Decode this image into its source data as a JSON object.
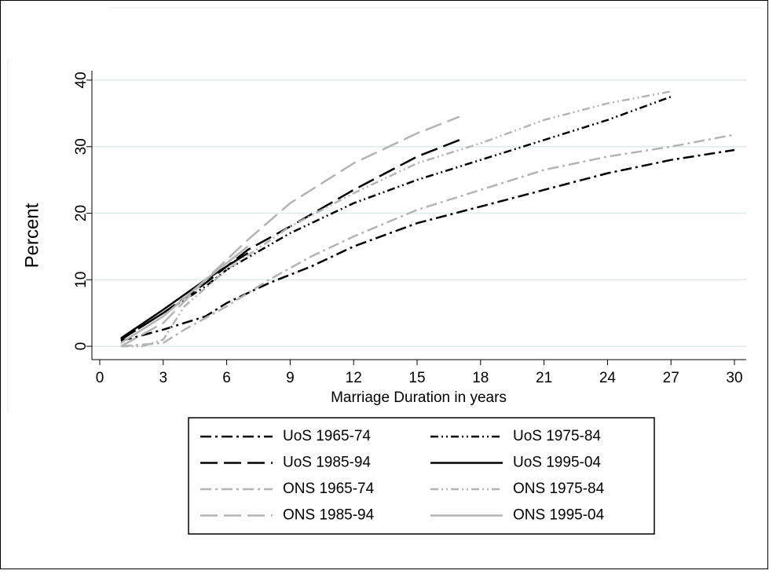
{
  "chart_data": {
    "type": "line",
    "y_label": "Percent",
    "x_label": "Marriage Duration in years",
    "xlim": [
      0,
      30
    ],
    "xticks": [
      0,
      3,
      6,
      9,
      12,
      15,
      18,
      21,
      24,
      27,
      30
    ],
    "ylim": [
      0,
      40
    ],
    "yticks": [
      0,
      10,
      20,
      30,
      40
    ],
    "grid": true,
    "series": [
      {
        "name": "UoS 1965-74",
        "color": "#000000",
        "dash": "dash-dot",
        "x": [
          1,
          3,
          5,
          6,
          8,
          10,
          12,
          15,
          18,
          21,
          24,
          27,
          30
        ],
        "values": [
          0.8,
          2.5,
          4.5,
          6.5,
          9.5,
          12,
          15,
          18.5,
          21,
          23.5,
          26,
          28,
          29.5
        ]
      },
      {
        "name": "UoS 1975-84",
        "color": "#000000",
        "dash": "dash-dot-dot",
        "x": [
          1,
          3,
          5,
          6,
          9,
          12,
          15,
          18,
          21,
          24,
          27
        ],
        "values": [
          1,
          5,
          9,
          11.5,
          17,
          21.5,
          25,
          28,
          31,
          34,
          37.5
        ]
      },
      {
        "name": "UoS 1985-94",
        "color": "#000000",
        "dash": "long-dash",
        "x": [
          1,
          3,
          5,
          7,
          9,
          12,
          15,
          17
        ],
        "values": [
          1,
          5,
          9.5,
          14.5,
          18,
          23.5,
          28.5,
          31
        ]
      },
      {
        "name": "UoS 1995-04",
        "color": "#000000",
        "dash": "solid",
        "x": [
          1,
          3,
          5,
          7
        ],
        "values": [
          1.2,
          5.5,
          10,
          14
        ]
      },
      {
        "name": "ONS 1965-74",
        "color": "#b4b4b4",
        "dash": "dash-dot",
        "x": [
          1,
          3,
          4,
          6,
          8,
          10,
          12,
          15,
          18,
          21,
          24,
          27,
          30
        ],
        "values": [
          0,
          0.5,
          2.5,
          6,
          10,
          13.5,
          16.5,
          20.5,
          23.5,
          26.5,
          28.5,
          30,
          31.8
        ]
      },
      {
        "name": "ONS 1975-84",
        "color": "#b4b4b4",
        "dash": "dash-dot-dot",
        "x": [
          1,
          2,
          3,
          4,
          6,
          9,
          12,
          15,
          18,
          21,
          24,
          27
        ],
        "values": [
          0,
          0,
          1,
          6,
          11.5,
          18,
          23,
          27.5,
          30.5,
          34,
          36.5,
          38.3
        ]
      },
      {
        "name": "ONS 1985-94",
        "color": "#b4b4b4",
        "dash": "long-dash",
        "x": [
          1,
          3,
          5,
          7,
          9,
          12,
          15,
          17
        ],
        "values": [
          0,
          3.5,
          10,
          16,
          21.5,
          27.5,
          32,
          34.5
        ]
      },
      {
        "name": "ONS 1995-04",
        "color": "#b4b4b4",
        "dash": "solid",
        "x": [
          1,
          3,
          5,
          7
        ],
        "values": [
          0.5,
          4.5,
          10,
          15
        ]
      }
    ]
  }
}
